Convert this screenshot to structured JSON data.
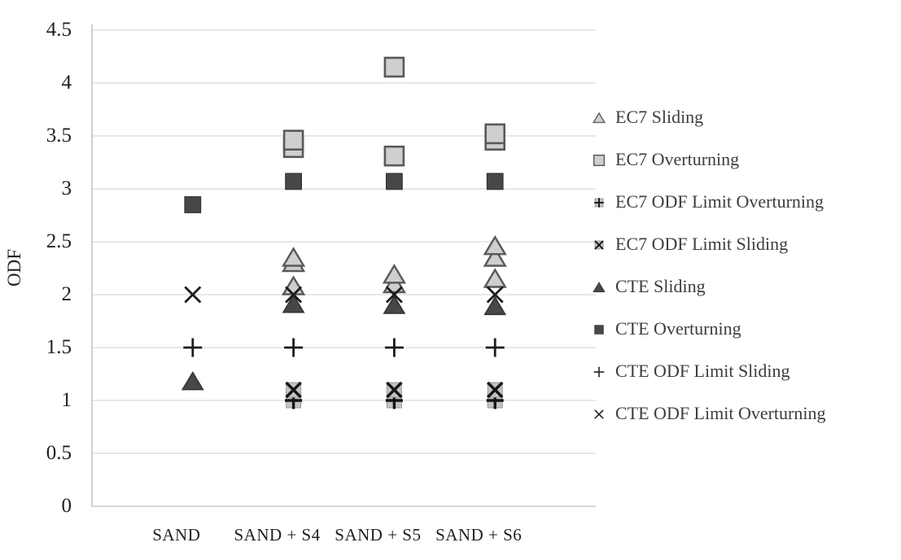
{
  "colors": {
    "light_fill": "#cfcfcf",
    "light_stroke": "#595959",
    "dark_fill": "#474747",
    "dark_stroke": "#333333",
    "marker_line": "#1c1c1c",
    "limit_square_fill": "#c3c3c3",
    "limit_square_stroke": "#9a9a9a",
    "gridline": "#d9d9d9",
    "axis_line": "#bfbfbf",
    "text": "#1f1f1f",
    "legend_text": "#3d3d3d"
  },
  "chart_data": {
    "type": "scatter",
    "title": "",
    "xlabel": "",
    "ylabel": "ODF",
    "ylim": [
      0,
      4.5
    ],
    "ytick_step": 0.5,
    "yticks": [
      "4.5",
      "4",
      "3.5",
      "3",
      "2.5",
      "2",
      "1.5",
      "1",
      "0.5",
      "0"
    ],
    "categories": [
      "SAND",
      "SAND + S4",
      "SAND + S5",
      "SAND + S6"
    ],
    "grid": "horizontal",
    "legend_position": "right",
    "series": [
      {
        "name": "EC7 Sliding",
        "marker": "triangle-light",
        "values_by_category": [
          [],
          [
            2.08,
            2.3,
            2.35
          ],
          [
            2.1,
            2.19
          ],
          [
            2.15,
            2.35,
            2.46
          ]
        ]
      },
      {
        "name": "EC7 Overturning",
        "marker": "square-light",
        "values_by_category": [
          [],
          [
            3.39,
            3.46
          ],
          [
            3.31,
            4.15
          ],
          [
            3.46,
            3.52
          ]
        ]
      },
      {
        "name": "EC7 ODF Limit Overturning",
        "marker": "plus-square",
        "values_by_category": [
          [],
          [
            1.0
          ],
          [
            1.0
          ],
          [
            1.0
          ]
        ]
      },
      {
        "name": "EC7 ODF Limit Sliding",
        "marker": "x-square",
        "values_by_category": [
          [],
          [
            1.1
          ],
          [
            1.1
          ],
          [
            1.1
          ]
        ]
      },
      {
        "name": "CTE Sliding",
        "marker": "triangle-dark",
        "values_by_category": [
          [
            1.18
          ],
          [
            1.91
          ],
          [
            1.9
          ],
          [
            1.89
          ]
        ]
      },
      {
        "name": "CTE Overturning",
        "marker": "square-dark",
        "values_by_category": [
          [
            2.85
          ],
          [
            3.07
          ],
          [
            3.07
          ],
          [
            3.07
          ]
        ]
      },
      {
        "name": "CTE ODF Limit Sliding",
        "marker": "plus",
        "values_by_category": [
          [
            1.5
          ],
          [
            1.5
          ],
          [
            1.5
          ],
          [
            1.5
          ]
        ]
      },
      {
        "name": "CTE ODF Limit Overturning",
        "marker": "x",
        "values_by_category": [
          [
            2.0
          ],
          [
            2.0
          ],
          [
            2.0
          ],
          [
            2.0
          ]
        ]
      }
    ]
  }
}
